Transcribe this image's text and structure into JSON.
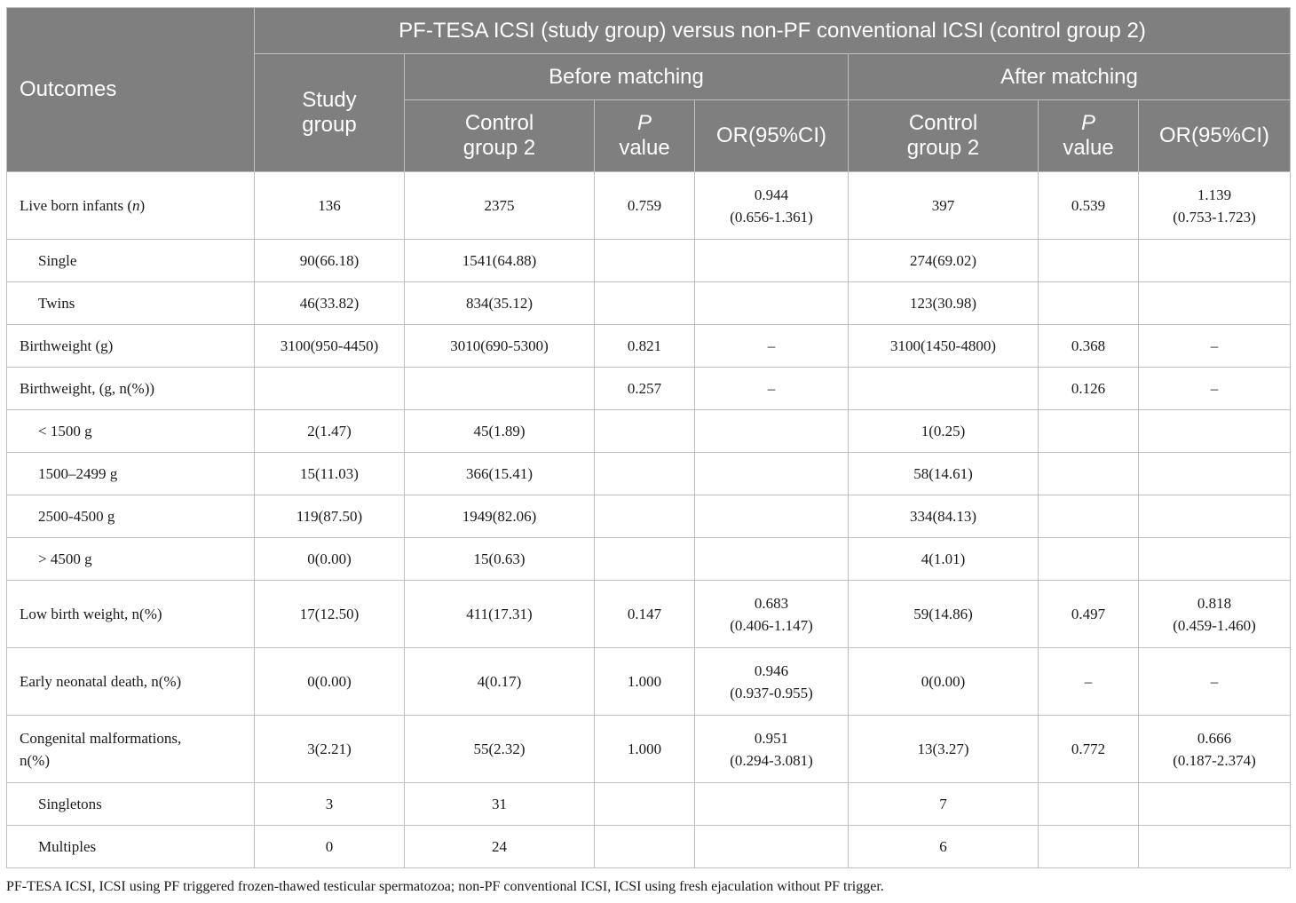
{
  "header": {
    "outcomes": "Outcomes",
    "comparison": "PF-TESA ICSI (study group) versus non-PF conventional ICSI (control group 2)",
    "before_matching": "Before matching",
    "after_matching": "After matching",
    "study_group": "Study group",
    "control_group_before": "Control group 2",
    "p_before_italic": "P",
    "p_before_rest": "value",
    "or_before": "OR(95%CI)",
    "control_group_after": "Control group 2",
    "p_after_italic": "P",
    "p_after_rest": "value",
    "or_after": "OR(95%CI)"
  },
  "rows": [
    {
      "label": "Live born infants (",
      "label_italic": "n",
      "label_suffix": ")",
      "study": "136",
      "ctrl_b": "2375",
      "p_b": "0.759",
      "or_b": "0.944",
      "or_b2": "(0.656-1.361)",
      "ctrl_a": "397",
      "p_a": "0.539",
      "or_a": "1.139",
      "or_a2": "(0.753-1.723)"
    },
    {
      "label": "Single",
      "study": "90(66.18)",
      "ctrl_b": "1541(64.88)",
      "p_b": "",
      "or_b": "",
      "or_b2": "",
      "ctrl_a": "274(69.02)",
      "p_a": "",
      "or_a": "",
      "or_a2": ""
    },
    {
      "label": "Twins",
      "study": "46(33.82)",
      "ctrl_b": "834(35.12)",
      "p_b": "",
      "or_b": "",
      "or_b2": "",
      "ctrl_a": "123(30.98)",
      "p_a": "",
      "or_a": "",
      "or_a2": ""
    },
    {
      "label": "Birthweight (g)",
      "study": "3100(950-4450)",
      "ctrl_b": "3010(690-5300)",
      "p_b": "0.821",
      "or_b": "–",
      "or_b2": "",
      "ctrl_a": "3100(1450-4800)",
      "p_a": "0.368",
      "or_a": "–",
      "or_a2": ""
    },
    {
      "label": "Birthweight, (g, n(%))",
      "study": "",
      "ctrl_b": "",
      "p_b": "0.257",
      "or_b": "–",
      "or_b2": "",
      "ctrl_a": "",
      "p_a": "0.126",
      "or_a": "–",
      "or_a2": ""
    },
    {
      "label": "< 1500 g",
      "study": "2(1.47)",
      "ctrl_b": "45(1.89)",
      "p_b": "",
      "or_b": "",
      "or_b2": "",
      "ctrl_a": "1(0.25)",
      "p_a": "",
      "or_a": "",
      "or_a2": ""
    },
    {
      "label": "1500–2499 g",
      "study": "15(11.03)",
      "ctrl_b": "366(15.41)",
      "p_b": "",
      "or_b": "",
      "or_b2": "",
      "ctrl_a": "58(14.61)",
      "p_a": "",
      "or_a": "",
      "or_a2": ""
    },
    {
      "label": "2500-4500 g",
      "study": "119(87.50)",
      "ctrl_b": "1949(82.06)",
      "p_b": "",
      "or_b": "",
      "or_b2": "",
      "ctrl_a": "334(84.13)",
      "p_a": "",
      "or_a": "",
      "or_a2": ""
    },
    {
      "label": "> 4500 g",
      "study": "0(0.00)",
      "ctrl_b": "15(0.63)",
      "p_b": "",
      "or_b": "",
      "or_b2": "",
      "ctrl_a": "4(1.01)",
      "p_a": "",
      "or_a": "",
      "or_a2": ""
    },
    {
      "label": "Low birth weight, n(%)",
      "study": "17(12.50)",
      "ctrl_b": "411(17.31)",
      "p_b": "0.147",
      "or_b": "0.683",
      "or_b2": "(0.406-1.147)",
      "ctrl_a": "59(14.86)",
      "p_a": "0.497",
      "or_a": "0.818",
      "or_a2": "(0.459-1.460)"
    },
    {
      "label": "Early neonatal death, n(%)",
      "study": "0(0.00)",
      "ctrl_b": "4(0.17)",
      "p_b": "1.000",
      "or_b": "0.946",
      "or_b2": "(0.937-0.955)",
      "ctrl_a": "0(0.00)",
      "p_a": "–",
      "or_a": "–",
      "or_a2": ""
    },
    {
      "label": "Congenital malformations,",
      "label2": "n(%)",
      "study": "3(2.21)",
      "ctrl_b": "55(2.32)",
      "p_b": "1.000",
      "or_b": "0.951",
      "or_b2": "(0.294-3.081)",
      "ctrl_a": "13(3.27)",
      "p_a": "0.772",
      "or_a": "0.666",
      "or_a2": "(0.187-2.374)"
    },
    {
      "label": "Singletons",
      "study": "3",
      "ctrl_b": "31",
      "p_b": "",
      "or_b": "",
      "or_b2": "",
      "ctrl_a": "7",
      "p_a": "",
      "or_a": "",
      "or_a2": ""
    },
    {
      "label": "Multiples",
      "study": "0",
      "ctrl_b": "24",
      "p_b": "",
      "or_b": "",
      "or_b2": "",
      "ctrl_a": "6",
      "p_a": "",
      "or_a": "",
      "or_a2": ""
    }
  ],
  "footnote": "PF-TESA ICSI, ICSI using PF triggered frozen-thawed testicular spermatozoa; non-PF conventional ICSI, ICSI using fresh ejaculation without PF trigger.",
  "colors": {
    "header_bg": "#7f7f7f",
    "header_text": "#ffffff",
    "border": "#bfbfbf"
  }
}
